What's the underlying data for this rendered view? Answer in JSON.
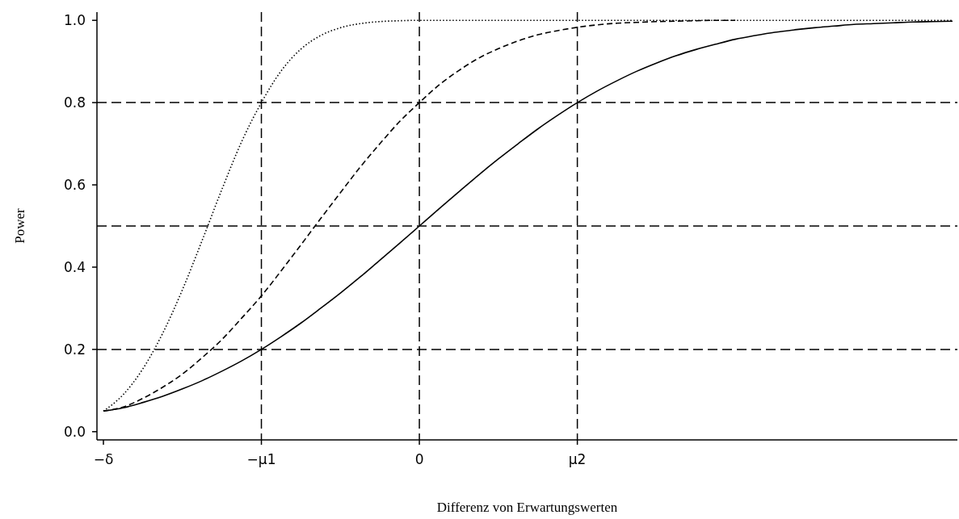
{
  "chart_data": {
    "type": "line",
    "xlabel": "Differenz von Erwartungswerten",
    "ylabel": "Power",
    "categories": [
      "−δ",
      null,
      null,
      null,
      null,
      null,
      null,
      null,
      "−μ1",
      null,
      null,
      null,
      null,
      null,
      null,
      null,
      "0",
      null,
      null,
      null,
      null,
      null,
      null,
      null,
      "μ2",
      null,
      null,
      null,
      null,
      null,
      null,
      null,
      null,
      null,
      null,
      null,
      null,
      null,
      null,
      null,
      null,
      null,
      null,
      null
    ],
    "ylim": [
      -0.02,
      1.02
    ],
    "yticks": [
      {
        "value": 0,
        "label": "0.0"
      },
      {
        "value": 0.2,
        "label": "0.2"
      },
      {
        "value": 0.4,
        "label": "0.4"
      },
      {
        "value": 0.6,
        "label": "0.6"
      },
      {
        "value": 0.8,
        "label": "0.8"
      },
      {
        "value": 1,
        "label": "1.0"
      }
    ],
    "grid": false,
    "ref_lines": [
      {
        "axis": "x",
        "value": "−μ1",
        "line_style": "dashed",
        "color": "#000000"
      },
      {
        "axis": "x",
        "value": "0",
        "line_style": "dashed",
        "color": "#000000"
      },
      {
        "axis": "x",
        "value": "μ2",
        "line_style": "dashed",
        "color": "#000000"
      },
      {
        "axis": "y",
        "value": 0.2,
        "line_style": "dashed",
        "color": "#000000"
      },
      {
        "axis": "y",
        "value": 0.5,
        "line_style": "dashed",
        "color": "#000000"
      },
      {
        "axis": "y",
        "value": 0.8,
        "line_style": "dashed",
        "color": "#000000"
      }
    ],
    "series": [
      {
        "color": "#000000",
        "line_style": "solid",
        "values": [
          0.05,
          0.058,
          0.071,
          0.086,
          0.104,
          0.124,
          0.147,
          0.172,
          0.2,
          0.231,
          0.264,
          0.3,
          0.337,
          0.376,
          0.417,
          0.458,
          0.5,
          0.542,
          0.583,
          0.624,
          0.663,
          0.7,
          0.736,
          0.769,
          0.8,
          0.828,
          0.853,
          0.876,
          0.896,
          0.914,
          0.929,
          0.942,
          0.954,
          0.963,
          0.971,
          0.977,
          0.982,
          0.986,
          0.99,
          0.992,
          0.994,
          0.996,
          0.997,
          0.998
        ]
      },
      {
        "color": "#000000",
        "line_style": "dashed",
        "values": [
          0.05,
          0.06,
          0.081,
          0.108,
          0.14,
          0.18,
          0.224,
          0.276,
          0.33,
          0.391,
          0.454,
          0.518,
          0.581,
          0.643,
          0.7,
          0.754,
          0.8,
          0.843,
          0.878,
          0.908,
          0.931,
          0.95,
          0.965,
          0.975,
          0.983,
          0.989,
          0.993,
          0.995,
          0.997,
          0.998,
          0.999,
          1,
          1,
          null,
          null,
          null,
          null,
          null,
          null,
          null,
          null,
          null,
          null,
          null
        ]
      },
      {
        "color": "#000000",
        "line_style": "dotted",
        "values": [
          0.05,
          0.09,
          0.153,
          0.239,
          0.345,
          0.465,
          0.589,
          0.705,
          0.8,
          0.877,
          0.93,
          0.963,
          0.982,
          0.992,
          0.997,
          0.999,
          1,
          1,
          1,
          1,
          1,
          1,
          1,
          1,
          1,
          1,
          1,
          1,
          1,
          1,
          1,
          1,
          1,
          1,
          1,
          1,
          1,
          1,
          1,
          1,
          1,
          1,
          1,
          1
        ]
      }
    ]
  }
}
